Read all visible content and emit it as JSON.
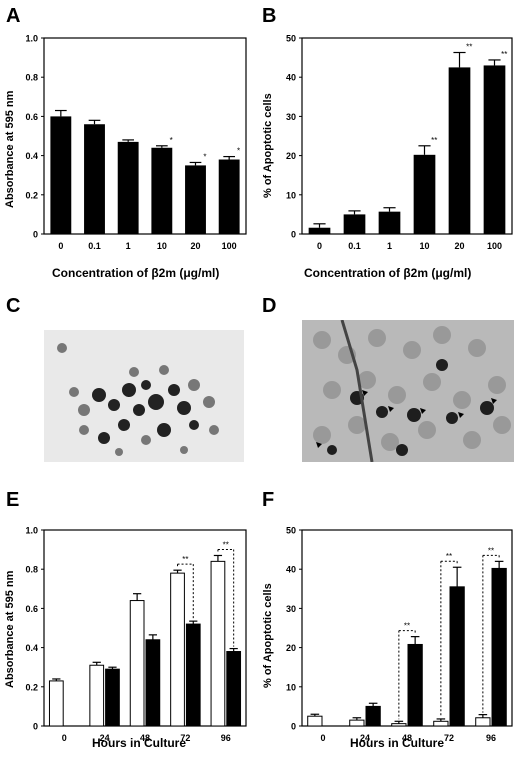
{
  "panels": {
    "A": "A",
    "B": "B",
    "C": "C",
    "D": "D",
    "E": "E",
    "F": "F"
  },
  "chart_data": [
    {
      "panel": "A",
      "type": "bar",
      "categories": [
        "0",
        "0.1",
        "1",
        "10",
        "20",
        "100"
      ],
      "values": [
        0.6,
        0.56,
        0.47,
        0.44,
        0.35,
        0.38
      ],
      "errors": [
        0.03,
        0.02,
        0.01,
        0.01,
        0.015,
        0.015
      ],
      "significance": [
        "",
        "",
        "",
        "*",
        "*",
        "*"
      ],
      "ylim": [
        0,
        1.0
      ],
      "yticks": [
        "0",
        "0.2",
        "0.4",
        "0.6",
        "0.8",
        "1.0"
      ],
      "xlabel": "Concentration of  β2m (μg/ml)",
      "ylabel": "Absorbance at 595 nm"
    },
    {
      "panel": "B",
      "type": "bar",
      "categories": [
        "0",
        "0.1",
        "1",
        "10",
        "20",
        "100"
      ],
      "values": [
        1.6,
        5.0,
        5.7,
        20.2,
        42.5,
        43.0
      ],
      "errors": [
        1.0,
        0.9,
        1.0,
        2.3,
        3.8,
        1.4
      ],
      "significance": [
        "",
        "",
        "",
        "**",
        "**",
        "**"
      ],
      "ylim": [
        0,
        50
      ],
      "yticks": [
        "0",
        "10",
        "20",
        "30",
        "40",
        "50"
      ],
      "xlabel": "Concentration of  β2m (μg/ml)",
      "ylabel": "% of Apoptotic cells"
    },
    {
      "panel": "E",
      "type": "bar",
      "categories": [
        "0",
        "24",
        "48",
        "72",
        "96"
      ],
      "series": [
        {
          "values": [
            0.23,
            0.31,
            0.64,
            0.78,
            0.84
          ],
          "errors": [
            0.01,
            0.015,
            0.035,
            0.015,
            0.03
          ],
          "color": "#ffffff"
        },
        {
          "values": [
            null,
            0.29,
            0.44,
            0.52,
            0.38
          ],
          "errors": [
            null,
            0.01,
            0.025,
            0.015,
            0.015
          ],
          "color": "#000000"
        }
      ],
      "brackets": [
        {
          "category": "72",
          "label": "**"
        },
        {
          "category": "96",
          "label": "**"
        }
      ],
      "ylim": [
        0,
        1.0
      ],
      "yticks": [
        "0",
        "0.2",
        "0.4",
        "0.6",
        "0.8",
        "1.0"
      ],
      "xlabel": "Hours in Culture",
      "ylabel": "Absorbance at 595 nm"
    },
    {
      "panel": "F",
      "type": "bar",
      "categories": [
        "0",
        "24",
        "48",
        "72",
        "96"
      ],
      "series": [
        {
          "values": [
            2.5,
            1.5,
            0.6,
            1.2,
            2.1
          ],
          "errors": [
            0.5,
            0.6,
            0.6,
            0.6,
            0.8
          ],
          "color": "#ffffff"
        },
        {
          "values": [
            null,
            5.0,
            20.8,
            35.5,
            40.2
          ],
          "errors": [
            null,
            0.8,
            2.0,
            5.0,
            1.8
          ],
          "color": "#000000"
        }
      ],
      "brackets": [
        {
          "category": "48",
          "label": "**"
        },
        {
          "category": "72",
          "label": "**"
        },
        {
          "category": "96",
          "label": "**"
        }
      ],
      "ylim": [
        0,
        50
      ],
      "yticks": [
        "0",
        "10",
        "20",
        "30",
        "40",
        "50"
      ],
      "xlabel": "Hours in Culture",
      "ylabel": "% of Apoptotic cells"
    }
  ]
}
